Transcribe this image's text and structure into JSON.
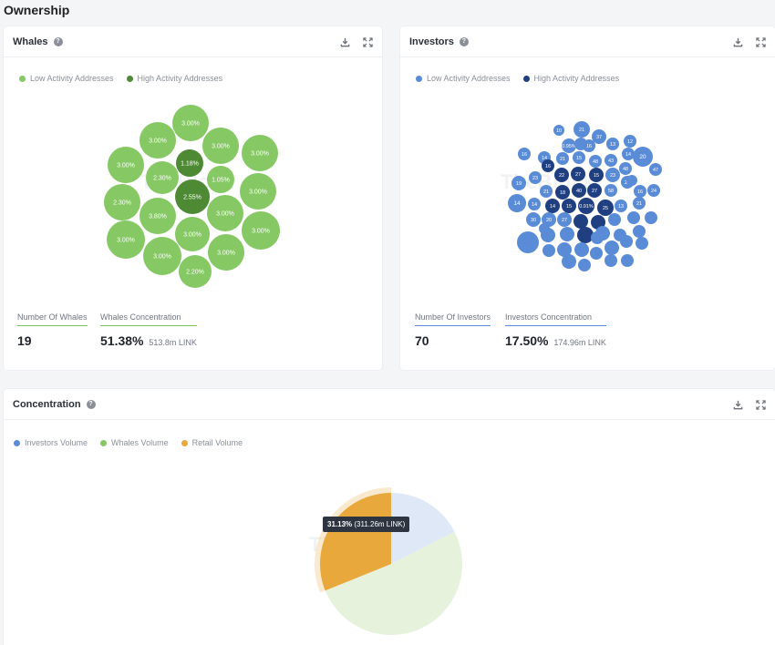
{
  "page": {
    "title": "Ownership"
  },
  "colors": {
    "low_green": "#86c864",
    "high_green": "#4e8a33",
    "low_blue": "#5a8bd6",
    "high_blue": "#1f3f80",
    "orange": "#e9a83b",
    "light_green": "#e6f2dc",
    "light_blue": "#dfe8f6"
  },
  "icons": {
    "download": "download-icon",
    "expand": "expand-icon",
    "help": "help-icon"
  },
  "watermark": "TheBlock",
  "whales": {
    "title": "Whales",
    "legend": {
      "low": "Low Activity Addresses",
      "high": "High Activity Addresses"
    },
    "bubbles": [
      {
        "label": "3.00%",
        "level": "low"
      },
      {
        "label": "3.00%",
        "level": "low"
      },
      {
        "label": "3.00%",
        "level": "low"
      },
      {
        "label": "3.00%",
        "level": "low"
      },
      {
        "label": "3.00%",
        "level": "low"
      },
      {
        "label": "1.18%",
        "level": "high"
      },
      {
        "label": "2.30%",
        "level": "low"
      },
      {
        "label": "1.05%",
        "level": "low"
      },
      {
        "label": "2.30%",
        "level": "low"
      },
      {
        "label": "2.55%",
        "level": "high"
      },
      {
        "label": "3.00%",
        "level": "low"
      },
      {
        "label": "3.80%",
        "level": "low"
      },
      {
        "label": "3.00%",
        "level": "low"
      },
      {
        "label": "3.00%",
        "level": "low"
      },
      {
        "label": "3.00%",
        "level": "low"
      },
      {
        "label": "3.00%",
        "level": "low"
      },
      {
        "label": "3.00%",
        "level": "low"
      },
      {
        "label": "3.00%",
        "level": "low"
      },
      {
        "label": "2.20%",
        "level": "low"
      }
    ],
    "stats": {
      "count_label": "Number Of Whales",
      "count": "19",
      "conc_label": "Whales Concentration",
      "conc": "51.38%",
      "conc_sub": "513.8m LINK"
    }
  },
  "investors": {
    "title": "Investors",
    "legend": {
      "low": "Low Activity Addresses",
      "high": "High Activity Addresses"
    },
    "bubble_labels": [
      "10",
      "21",
      "37",
      "13",
      "12",
      "0.95%",
      "16",
      "14",
      "20",
      "16",
      "14",
      "21",
      "15",
      "48",
      "43",
      "48",
      "16",
      "22",
      "27",
      "15",
      "23",
      "47",
      "23",
      "19",
      "21",
      "18",
      "40",
      "27",
      "58",
      "21",
      "16",
      "14",
      "14",
      "14",
      "15",
      "0.91%",
      "25",
      "13",
      "21",
      "24",
      "30",
      "20",
      "27"
    ],
    "stats": {
      "count_label": "Number Of Investors",
      "count": "70",
      "conc_label": "Investors Concentration",
      "conc": "17.50%",
      "conc_sub": "174.96m LINK"
    }
  },
  "concentration": {
    "title": "Concentration",
    "legend": {
      "investors": "Investors Volume",
      "whales": "Whales Volume",
      "retail": "Retail Volume"
    },
    "tooltip": {
      "value": "31.13%",
      "detail": "(311.26m LINK)"
    }
  },
  "chart_data": {
    "type": "pie",
    "series": [
      {
        "name": "Retail Volume",
        "value": 31.13
      },
      {
        "name": "Whales Volume",
        "value": 51.38
      },
      {
        "name": "Investors Volume",
        "value": 17.5
      }
    ]
  }
}
